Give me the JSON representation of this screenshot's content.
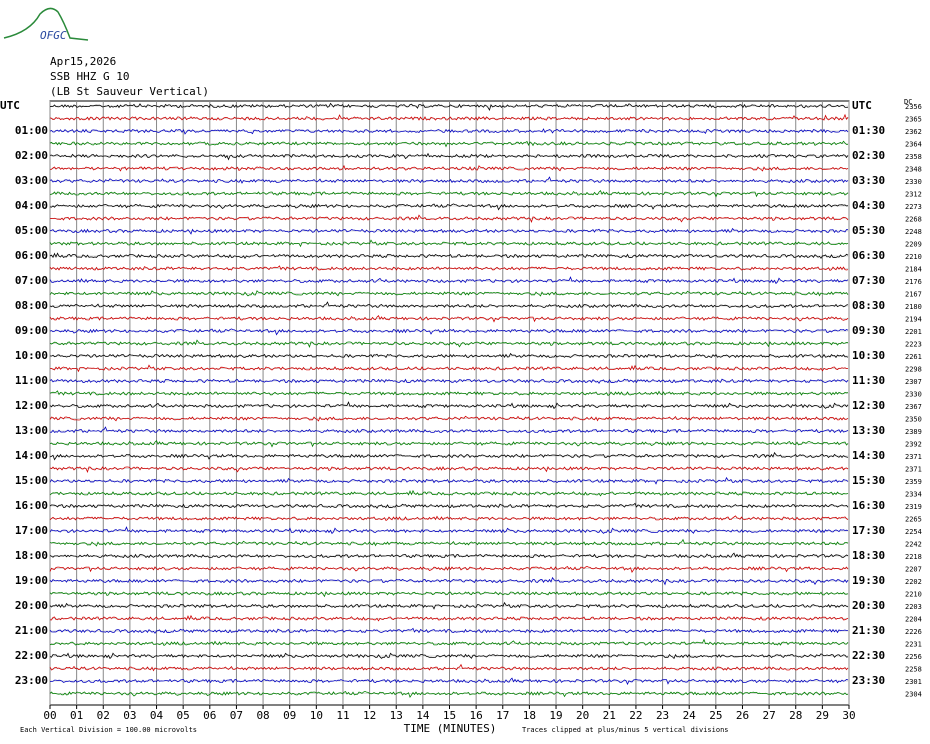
{
  "header": {
    "logo": "OFGC",
    "date": "Apr15,2026",
    "station": "SSB HHZ G 10",
    "location": "(LB St Sauveur Vertical)"
  },
  "left_labels": [
    "UTC",
    "01:00",
    "02:00",
    "03:00",
    "04:00",
    "05:00",
    "06:00",
    "07:00",
    "08:00",
    "09:00",
    "10:00",
    "11:00",
    "12:00",
    "13:00",
    "14:00",
    "15:00",
    "16:00",
    "17:00",
    "18:00",
    "19:00",
    "20:00",
    "21:00",
    "22:00",
    "23:00"
  ],
  "right_labels": [
    "UTC",
    "01:30",
    "02:30",
    "03:30",
    "04:30",
    "05:30",
    "06:30",
    "07:30",
    "08:30",
    "09:30",
    "10:30",
    "11:30",
    "12:30",
    "13:30",
    "14:30",
    "15:30",
    "16:30",
    "17:30",
    "18:30",
    "19:30",
    "20:30",
    "21:30",
    "22:30",
    "23:30"
  ],
  "dc_label": "DC",
  "trace_levels": [
    2356,
    2365,
    2362,
    2364,
    2358,
    2348,
    2330,
    2312,
    2273,
    2268,
    2248,
    2209,
    2210,
    2184,
    2176,
    2167,
    2180,
    2194,
    2201,
    2223,
    2261,
    2298,
    2307,
    2330,
    2367,
    2350,
    2389,
    2392,
    2371,
    2371,
    2359,
    2334,
    2319,
    2265,
    2254,
    2242,
    2218,
    2207,
    2202,
    2210,
    2203,
    2204,
    2226,
    2231,
    2256,
    2258,
    2301,
    2304
  ],
  "x_ticks": [
    "00",
    "01",
    "02",
    "03",
    "04",
    "05",
    "06",
    "07",
    "08",
    "09",
    "10",
    "11",
    "12",
    "13",
    "14",
    "15",
    "16",
    "17",
    "18",
    "19",
    "20",
    "21",
    "22",
    "23",
    "24",
    "25",
    "26",
    "27",
    "28",
    "29",
    "30"
  ],
  "x_label": "TIME (MINUTES)",
  "footer_left": "Each Vertical Division =  100.00 microvolts",
  "footer_right": "Traces clipped at plus/minus 5 vertical divisions"
}
